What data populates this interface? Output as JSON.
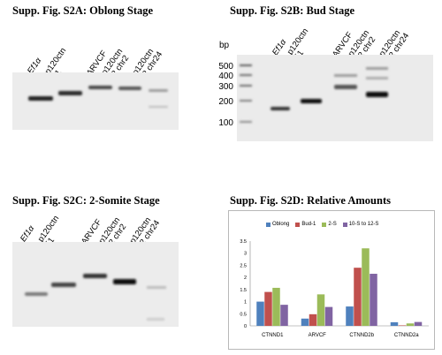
{
  "panels": {
    "a": {
      "title": "Supp. Fig. S2A: Oblong Stage",
      "lanes": [
        "Ef1α",
        "p120ctn\nδ1",
        "ARVCF",
        "p120ctn\nδ2 chr2",
        "p120ctn\nδ2 chr24"
      ]
    },
    "b": {
      "title": "Supp. Fig. S2B: Bud Stage",
      "lanes": [
        "Ef1α",
        "p120ctn\nδ1",
        "ARVCF",
        "p120ctn\nδ2 chr2",
        "p120ctn\nδ2 chr24"
      ],
      "ladder_unit": "bp",
      "ladder": [
        "500",
        "400",
        "300",
        "200",
        "100"
      ]
    },
    "c": {
      "title": "Supp. Fig. S2C: 2-Somite Stage",
      "lanes": [
        "Ef1α",
        "p120ctn\nδ1",
        "ARVCF",
        "p120ctn\nδ2 chr2",
        "p120ctn\nδ2 chr24"
      ]
    },
    "d": {
      "title": "Supp. Fig. S2D: Relative Amounts"
    }
  },
  "chart_data": {
    "type": "bar",
    "title": "",
    "categories": [
      "CTNND1",
      "ARVCF",
      "CTNND2b",
      "CTNND2a"
    ],
    "series": [
      {
        "name": "Oblong",
        "color": "#4f81bd",
        "values": [
          1.0,
          0.3,
          0.8,
          0.15
        ]
      },
      {
        "name": "Bud-1",
        "color": "#c0504d",
        "values": [
          1.4,
          0.48,
          2.4,
          0.02
        ]
      },
      {
        "name": "2-S",
        "color": "#9bbb59",
        "values": [
          1.57,
          1.3,
          3.2,
          0.1
        ]
      },
      {
        "name": "10-S to 12-S",
        "color": "#8064a2",
        "values": [
          0.87,
          0.78,
          2.15,
          0.16
        ]
      }
    ],
    "ylim": [
      0,
      3.5
    ],
    "yticks": [
      "0",
      "0.5",
      "1",
      "1.5",
      "2",
      "2.5",
      "3",
      "3.5"
    ],
    "legend_position": "top",
    "grid": false
  }
}
